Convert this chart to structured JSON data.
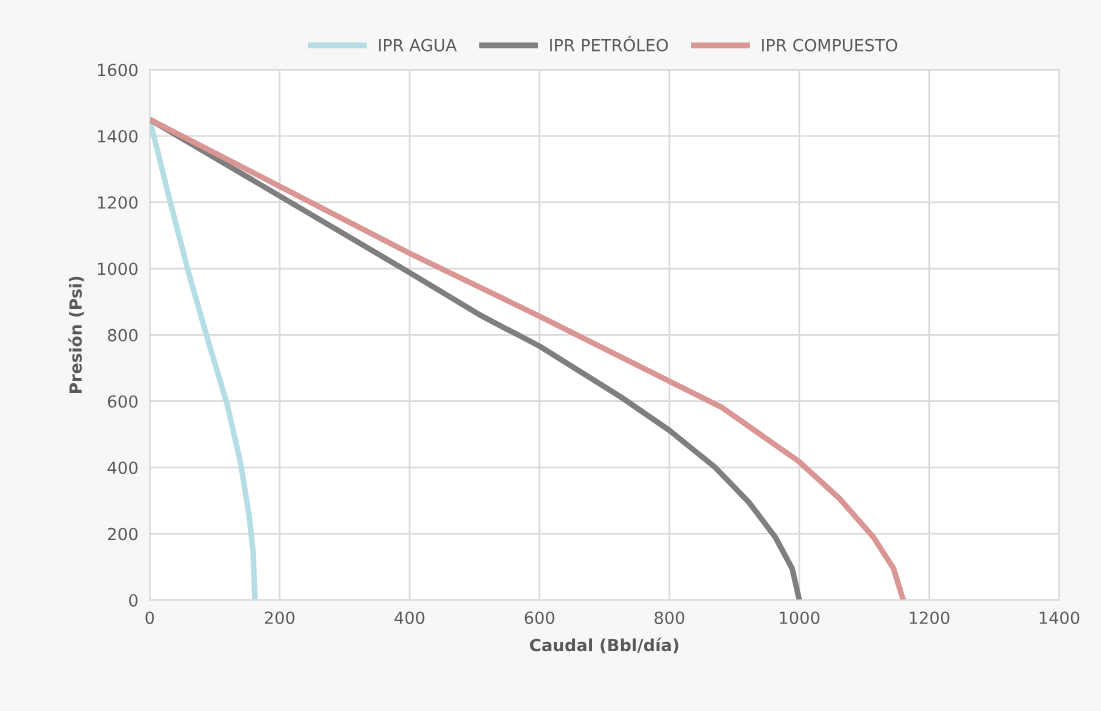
{
  "chart_data": {
    "type": "line",
    "xlabel": "Caudal (Bbl/día)",
    "ylabel": "Presión (Psi)",
    "xlim": [
      0,
      1400
    ],
    "xticks": [
      0,
      200,
      400,
      600,
      800,
      1000,
      1200,
      1400
    ],
    "ylim": [
      0,
      1600
    ],
    "yticks": [
      0,
      200,
      400,
      600,
      800,
      1000,
      1200,
      1400,
      1600
    ],
    "grid": true,
    "legend": "top",
    "marker": "none",
    "line_style": "solid",
    "series": [
      {
        "name": "IPR AGUA",
        "color": "#b4dde6",
        "x": [
          0,
          31,
          62,
          93,
          119,
          140,
          153,
          159,
          162
        ],
        "values": [
          1450,
          1205,
          972,
          761,
          592,
          412,
          254,
          148,
          0
        ]
      },
      {
        "name": "IPR PETRÓLEO",
        "color": "#7f7f7f",
        "x": [
          0,
          400,
          512,
          600,
          725,
          800,
          870,
          922,
          963,
          989,
          1000
        ],
        "values": [
          1450,
          988,
          856,
          766,
          613,
          512,
          401,
          296,
          190,
          95,
          0
        ]
      },
      {
        "name": "IPR COMPUESTO",
        "color": "#d99694",
        "x": [
          0,
          400,
          512,
          600,
          800,
          881,
          1000,
          1062,
          1114,
          1145,
          1160
        ],
        "values": [
          1450,
          1046,
          940,
          856,
          660,
          581,
          417,
          306,
          190,
          95,
          0
        ]
      }
    ]
  }
}
